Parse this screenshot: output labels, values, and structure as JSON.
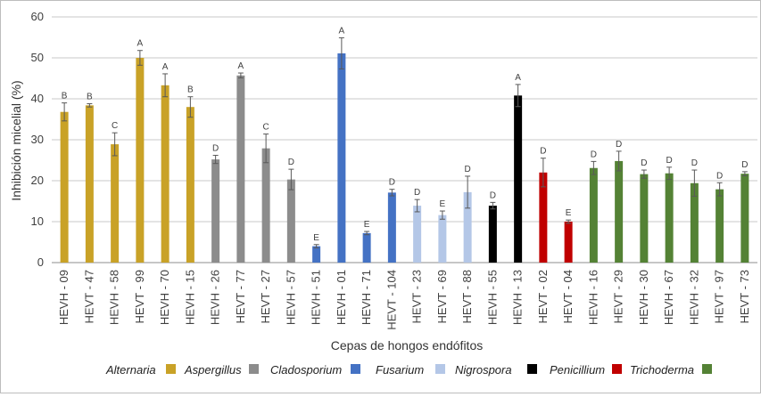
{
  "chart_data": {
    "type": "bar",
    "xlabel": "Cepas de hongos endófitos",
    "ylabel": "Inhibición micelial (%)",
    "ylim": [
      0,
      60
    ],
    "yticks": [
      0,
      10,
      20,
      30,
      40,
      50,
      60
    ],
    "grid": true,
    "legend_position": "bottom",
    "groups": [
      {
        "name": "Alternaria",
        "color": "#c9a227"
      },
      {
        "name": "Aspergillus",
        "color": "#8c8c8c"
      },
      {
        "name": "Cladosporium",
        "color": "#4472c4"
      },
      {
        "name": "Fusarium",
        "color": "#b4c7e7"
      },
      {
        "name": "Nigrospora",
        "color": "#000000"
      },
      {
        "name": "Penicillium",
        "color": "#c00000"
      },
      {
        "name": "Trichoderma",
        "color": "#548235"
      }
    ],
    "bars": [
      {
        "label": "HEVH - 09",
        "value": 36.8,
        "error": 2.2,
        "letter": "B",
        "group": 0
      },
      {
        "label": "HEVT - 47",
        "value": 38.4,
        "error": 0.4,
        "letter": "B",
        "group": 0
      },
      {
        "label": "HEVH - 58",
        "value": 28.9,
        "error": 2.8,
        "letter": "C",
        "group": 0
      },
      {
        "label": "HEVT - 99",
        "value": 50.0,
        "error": 1.8,
        "letter": "A",
        "group": 0
      },
      {
        "label": "HEVH - 70",
        "value": 43.3,
        "error": 2.8,
        "letter": "A",
        "group": 0
      },
      {
        "label": "HEVH - 15",
        "value": 38.0,
        "error": 2.5,
        "letter": "B",
        "group": 0
      },
      {
        "label": "HEVH - 26",
        "value": 25.2,
        "error": 1.0,
        "letter": "D",
        "group": 1
      },
      {
        "label": "HEVT - 77",
        "value": 45.7,
        "error": 0.6,
        "letter": "A",
        "group": 1
      },
      {
        "label": "HEVT - 27",
        "value": 27.9,
        "error": 3.5,
        "letter": "C",
        "group": 1
      },
      {
        "label": "HEVH - 57",
        "value": 20.3,
        "error": 2.5,
        "letter": "D",
        "group": 1
      },
      {
        "label": "HEVH - 51",
        "value": 4.0,
        "error": 0.4,
        "letter": "E",
        "group": 2
      },
      {
        "label": "HEVH - 01",
        "value": 51.1,
        "error": 3.8,
        "letter": "A",
        "group": 2
      },
      {
        "label": "HEVH - 71",
        "value": 7.2,
        "error": 0.4,
        "letter": "E",
        "group": 2
      },
      {
        "label": "HEVT - 104",
        "value": 17.1,
        "error": 0.8,
        "letter": "D",
        "group": 2
      },
      {
        "label": "HEVT - 23",
        "value": 13.9,
        "error": 1.5,
        "letter": "D",
        "group": 3
      },
      {
        "label": "HEVT - 69",
        "value": 11.6,
        "error": 1.0,
        "letter": "E",
        "group": 3
      },
      {
        "label": "HEVT - 88",
        "value": 17.2,
        "error": 3.9,
        "letter": "D",
        "group": 3
      },
      {
        "label": "HEVH - 55",
        "value": 13.9,
        "error": 0.8,
        "letter": "D",
        "group": 4
      },
      {
        "label": "HEVH - 13",
        "value": 40.8,
        "error": 2.7,
        "letter": "A",
        "group": 4
      },
      {
        "label": "HEVT - 02",
        "value": 22.0,
        "error": 3.5,
        "letter": "D",
        "group": 5
      },
      {
        "label": "HEVT - 04",
        "value": 10.0,
        "error": 0.4,
        "letter": "E",
        "group": 5
      },
      {
        "label": "HEVH - 16",
        "value": 23.1,
        "error": 1.6,
        "letter": "D",
        "group": 6
      },
      {
        "label": "HEVT - 29",
        "value": 24.8,
        "error": 2.4,
        "letter": "D",
        "group": 6
      },
      {
        "label": "HEVH - 30",
        "value": 21.6,
        "error": 1.0,
        "letter": "D",
        "group": 6
      },
      {
        "label": "HEVH - 67",
        "value": 21.8,
        "error": 1.5,
        "letter": "D",
        "group": 6
      },
      {
        "label": "HEVH - 32",
        "value": 19.4,
        "error": 3.2,
        "letter": "D",
        "group": 6
      },
      {
        "label": "HEVT - 97",
        "value": 17.9,
        "error": 1.6,
        "letter": "D",
        "group": 6
      },
      {
        "label": "HEVT - 73",
        "value": 21.7,
        "error": 0.5,
        "letter": "D",
        "group": 6
      }
    ]
  }
}
